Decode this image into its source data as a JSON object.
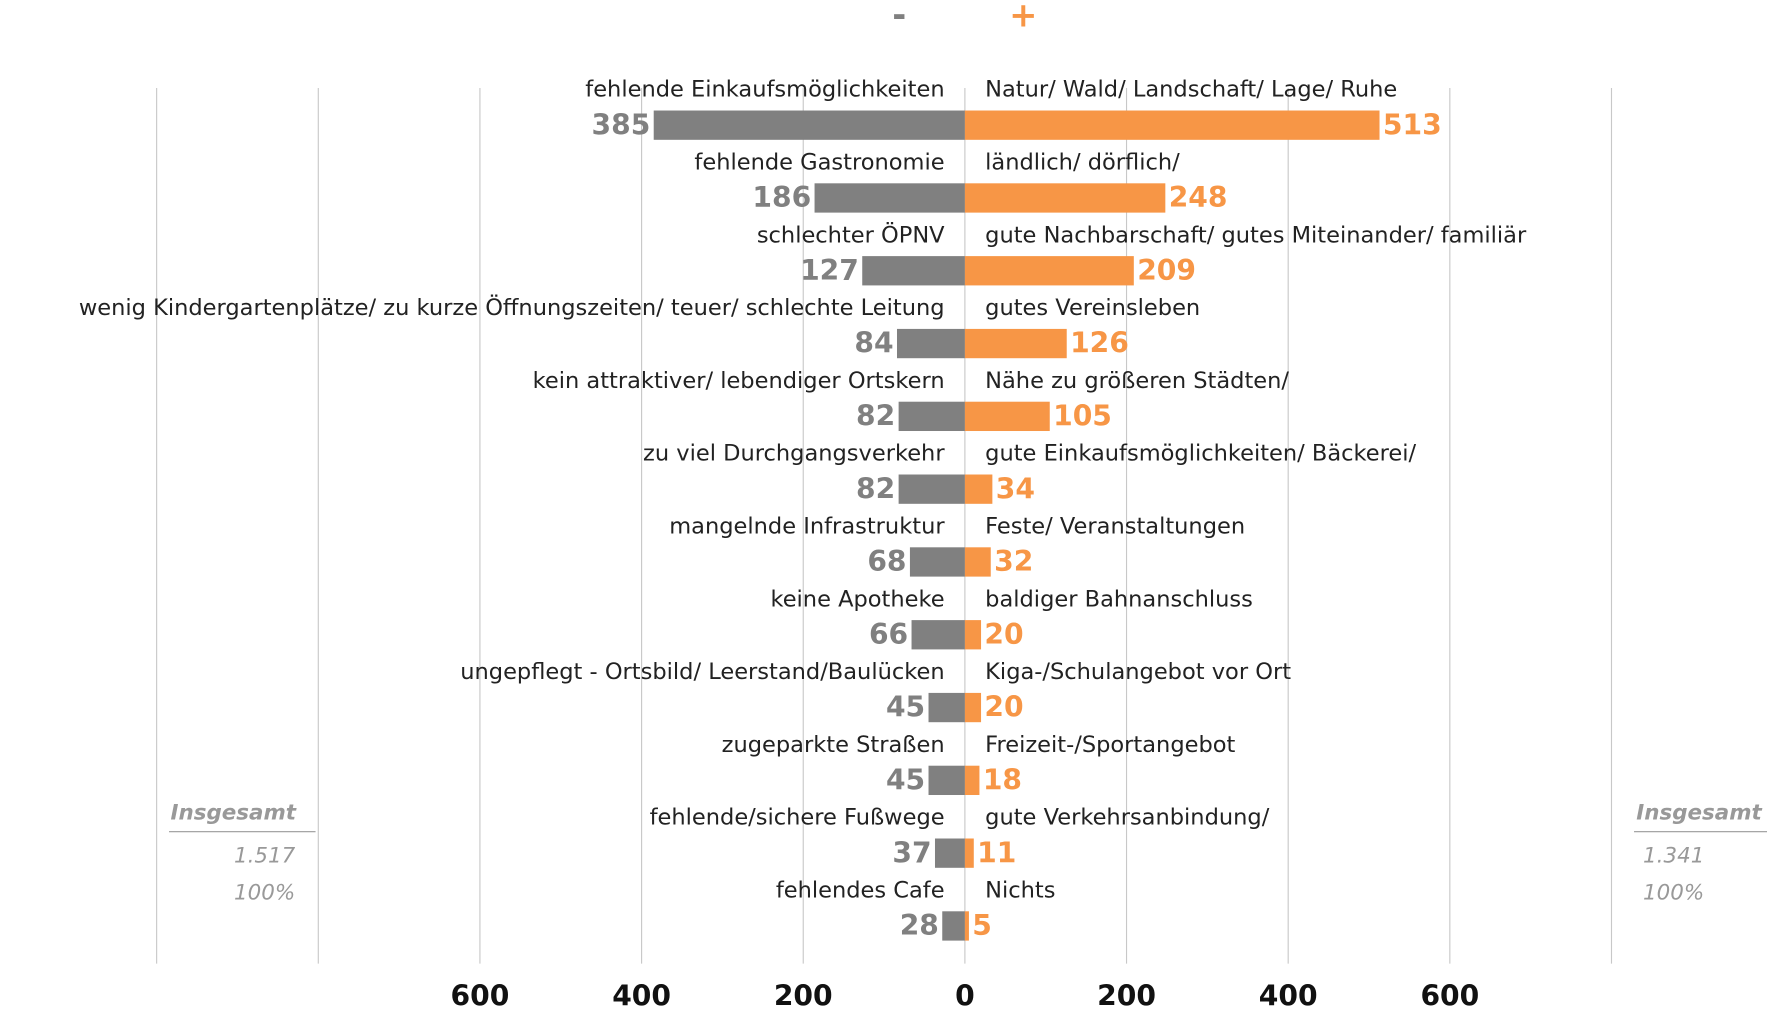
{
  "chart_data": {
    "type": "bar",
    "series": [
      {
        "name": "-",
        "color": "#808080",
        "labels": [
          "fehlende Einkaufsmöglichkeiten",
          "fehlende Gastronomie",
          "schlechter ÖPNV",
          "wenig Kindergartenplätze/ zu kurze Öffnungszeiten/ teuer/ schlechte Leitung",
          "kein attraktiver/ lebendiger Ortskern",
          "zu viel Durchgangsverkehr",
          "mangelnde Infrastruktur",
          "keine Apotheke",
          "ungepflegt - Ortsbild/ Leerstand/Baulücken",
          "zugeparkte Straßen",
          "fehlende/sichere Fußwege",
          "fehlendes Cafe"
        ],
        "values": [
          385,
          186,
          127,
          84,
          82,
          82,
          68,
          66,
          45,
          45,
          37,
          28
        ]
      },
      {
        "name": "+",
        "color": "#f79646",
        "labels": [
          "Natur/ Wald/ Landschaft/ Lage/ Ruhe",
          "ländlich/ dörflich/",
          "gute Nachbarschaft/ gutes Miteinander/ familiär",
          "gutes Vereinsleben",
          "Nähe zu größeren Städten/",
          "gute Einkaufsmöglichkeiten/ Bäckerei/",
          "Feste/ Veranstaltungen",
          "baldiger Bahnanschluss",
          "Kiga-/Schulangebot vor Ort",
          "Freizeit-/Sportangebot",
          "gute Verkehrsanbindung/",
          "Nichts"
        ],
        "values": [
          513,
          248,
          209,
          126,
          105,
          34,
          32,
          20,
          20,
          18,
          11,
          5
        ]
      }
    ],
    "xlim": [
      -1000,
      800
    ],
    "xticks": [
      {
        "value": -600,
        "label": "600"
      },
      {
        "value": -400,
        "label": "400"
      },
      {
        "value": -200,
        "label": "200"
      },
      0,
      200,
      400,
      600
    ],
    "xgrid": [
      -1000,
      -800,
      800
    ],
    "grid": true,
    "totals": [
      {
        "title": "Insgesamt",
        "total": "1.517",
        "share": "100%"
      },
      {
        "title": "Insgesamt",
        "total": "1.341",
        "share": "100%"
      }
    ]
  }
}
